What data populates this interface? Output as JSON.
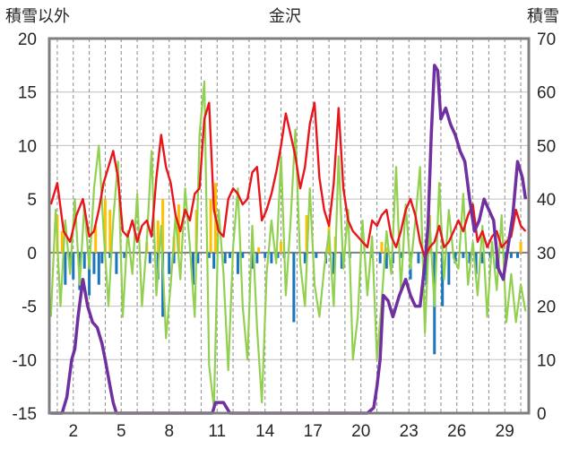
{
  "chart_data": {
    "type": "line",
    "title": "金沢",
    "ylabel_left": "積雪以外",
    "ylabel_right": "積雪",
    "left_axis": {
      "ylim": [
        -15,
        20
      ],
      "ticks": [
        "20",
        "15",
        "10",
        "5",
        "0",
        "-5",
        "-10",
        "-15"
      ]
    },
    "right_axis": {
      "ylim": [
        0,
        70
      ],
      "ticks": [
        "70",
        "60",
        "50",
        "40",
        "30",
        "20",
        "10",
        "0"
      ]
    },
    "x_axis": {
      "xlim": [
        0.5,
        30.5
      ],
      "tick_labels": [
        "2",
        "5",
        "8",
        "11",
        "14",
        "17",
        "20",
        "23",
        "26",
        "29"
      ],
      "tick_values": [
        2,
        5,
        8,
        11,
        14,
        17,
        20,
        23,
        26,
        29
      ]
    },
    "grid": {
      "vertical_dashed": true,
      "horizontal": true
    },
    "colors": {
      "temperature": "#e8161a",
      "wind": "#92d050",
      "sunshine": "#ffc000",
      "precip": "#1b75bc",
      "snow_depth": "#7030a0",
      "frame": "#7f7f7f",
      "grid": "#bfbfbf"
    },
    "series": [
      {
        "key": "temperature",
        "axis": "left",
        "style": "line",
        "x": [
          0.6,
          1.0,
          1.4,
          1.8,
          2.2,
          2.6,
          3.0,
          3.3,
          3.6,
          3.9,
          4.2,
          4.5,
          4.8,
          5.1,
          5.4,
          5.7,
          6.0,
          6.3,
          6.6,
          6.9,
          7.2,
          7.5,
          7.8,
          8.1,
          8.4,
          8.7,
          9.0,
          9.3,
          9.6,
          9.9,
          10.2,
          10.5,
          10.8,
          11.1,
          11.4,
          11.7,
          12.0,
          12.3,
          12.6,
          12.9,
          13.2,
          13.5,
          13.8,
          14.1,
          14.4,
          14.7,
          15.0,
          15.3,
          15.6,
          15.9,
          16.2,
          16.5,
          16.8,
          17.1,
          17.4,
          17.7,
          18.0,
          18.3,
          18.6,
          18.9,
          19.2,
          19.5,
          19.8,
          20.1,
          20.4,
          20.7,
          21.0,
          21.3,
          21.6,
          21.9,
          22.2,
          22.5,
          22.8,
          23.1,
          23.4,
          23.7,
          24.0,
          24.3,
          24.6,
          24.9,
          25.2,
          25.5,
          25.8,
          26.1,
          26.4,
          26.7,
          27.0,
          27.3,
          27.6,
          27.9,
          28.2,
          28.5,
          28.8,
          29.1,
          29.4,
          29.7,
          30.0,
          30.3
        ],
        "values": [
          4.5,
          6.5,
          2.0,
          1.0,
          3.5,
          5.0,
          1.5,
          2.0,
          4.0,
          6.5,
          8.0,
          9.5,
          7.0,
          2.0,
          1.5,
          3.0,
          1.0,
          2.5,
          3.0,
          1.5,
          7.0,
          11.0,
          8.0,
          6.5,
          3.5,
          2.0,
          4.0,
          3.0,
          5.5,
          6.0,
          12.5,
          14.0,
          4.0,
          2.0,
          1.5,
          5.0,
          6.0,
          5.5,
          4.5,
          5.0,
          7.5,
          8.0,
          3.0,
          4.0,
          5.5,
          7.5,
          10.0,
          13.0,
          11.0,
          9.0,
          6.0,
          8.0,
          12.0,
          14.0,
          7.0,
          4.0,
          2.5,
          6.5,
          13.5,
          6.0,
          3.0,
          2.0,
          1.5,
          1.0,
          0.5,
          3.0,
          2.5,
          3.5,
          4.0,
          1.5,
          0.5,
          2.0,
          4.0,
          5.0,
          3.5,
          1.0,
          -0.5,
          0.5,
          1.0,
          2.5,
          0.5,
          1.0,
          2.0,
          3.0,
          2.0,
          3.5,
          4.5,
          1.0,
          2.0,
          0.5,
          1.5,
          2.0,
          0.5,
          1.0,
          1.5,
          4.0,
          2.5,
          2.0
        ]
      },
      {
        "key": "wind",
        "axis": "left",
        "style": "line",
        "x": [
          0.6,
          0.9,
          1.2,
          1.5,
          1.8,
          2.1,
          2.4,
          2.7,
          3.0,
          3.3,
          3.6,
          3.9,
          4.2,
          4.5,
          4.8,
          5.1,
          5.4,
          5.7,
          6.0,
          6.3,
          6.6,
          6.9,
          7.2,
          7.5,
          7.8,
          8.1,
          8.4,
          8.7,
          9.0,
          9.3,
          9.6,
          9.9,
          10.2,
          10.5,
          10.8,
          11.1,
          11.4,
          11.7,
          12.0,
          12.3,
          12.6,
          12.9,
          13.2,
          13.5,
          13.8,
          14.1,
          14.4,
          14.7,
          15.0,
          15.3,
          15.6,
          15.9,
          16.2,
          16.5,
          16.8,
          17.1,
          17.4,
          17.7,
          18.0,
          18.3,
          18.6,
          18.9,
          19.2,
          19.5,
          19.8,
          20.1,
          20.4,
          20.7,
          21.0,
          21.3,
          21.6,
          21.9,
          22.2,
          22.5,
          22.8,
          23.1,
          23.4,
          23.7,
          24.0,
          24.3,
          24.6,
          24.9,
          25.2,
          25.5,
          25.8,
          26.1,
          26.4,
          26.7,
          27.0,
          27.3,
          27.6,
          27.9,
          28.2,
          28.5,
          28.8,
          29.1,
          29.4,
          29.7,
          30.0,
          30.3
        ],
        "values": [
          -6.0,
          4.0,
          -5.0,
          3.0,
          -2.0,
          5.0,
          -3.0,
          4.5,
          -1.5,
          6.0,
          10.0,
          2.0,
          -5.0,
          3.0,
          8.5,
          -6.0,
          2.0,
          -2.0,
          5.5,
          -5.0,
          1.0,
          9.5,
          -4.0,
          2.5,
          -8.0,
          -3.0,
          3.5,
          -2.5,
          6.0,
          0.5,
          -6.0,
          11.0,
          16.0,
          -10.5,
          -14.5,
          4.0,
          -2.0,
          -11.0,
          0.5,
          6.0,
          -5.0,
          -10.0,
          2.5,
          -7.0,
          -14.0,
          -2.0,
          3.0,
          -1.0,
          9.0,
          -4.0,
          3.0,
          11.5,
          -1.0,
          -5.0,
          6.0,
          -3.0,
          -6.0,
          -1.5,
          2.0,
          -5.0,
          9.0,
          -1.5,
          4.0,
          -10.0,
          -6.0,
          3.0,
          -4.0,
          1.5,
          -10.0,
          -4.5,
          2.0,
          -2.0,
          8.0,
          -3.5,
          4.5,
          -1.5,
          3.0,
          8.0,
          -7.5,
          3.0,
          -5.0,
          6.5,
          -2.5,
          4.0,
          -0.5,
          -1.5,
          5.5,
          -3.0,
          1.0,
          -4.0,
          2.5,
          -6.0,
          1.0,
          -3.5,
          3.5,
          -6.5,
          -2.0,
          -6.5,
          -3.0,
          -5.5
        ]
      },
      {
        "key": "sunshine",
        "axis": "left",
        "style": "bar",
        "x": [
          1.0,
          1.3,
          3.4,
          4.0,
          4.3,
          6.6,
          7.3,
          7.6,
          8.3,
          8.6,
          9.7,
          10.6,
          10.9,
          13.6,
          15.0,
          16.6,
          18.0,
          18.4,
          21.3,
          21.6,
          24.3,
          29.2,
          30.0
        ],
        "values": [
          3.5,
          2.0,
          2.5,
          5.0,
          4.0,
          1.0,
          3.0,
          5.0,
          1.5,
          4.5,
          4.0,
          5.0,
          6.5,
          0.5,
          1.0,
          3.5,
          2.5,
          1.5,
          1.0,
          0.5,
          3.5,
          1.5,
          1.0
        ]
      },
      {
        "key": "precip",
        "axis": "left",
        "style": "bar",
        "x": [
          1.5,
          1.8,
          2.0,
          2.4,
          2.7,
          3.0,
          3.3,
          3.6,
          3.8,
          4.3,
          4.7,
          5.2,
          6.8,
          7.3,
          7.6,
          8.0,
          8.3,
          9.5,
          9.8,
          10.5,
          10.8,
          11.5,
          11.8,
          12.3,
          12.6,
          13.2,
          13.5,
          14.0,
          14.4,
          14.8,
          15.2,
          15.8,
          16.5,
          17.2,
          17.8,
          18.3,
          18.8,
          19.3,
          20.7,
          21.2,
          21.6,
          22.0,
          22.5,
          23.1,
          23.6,
          24.1,
          24.6,
          25.1,
          25.5,
          25.9,
          26.4,
          26.8,
          27.2,
          27.6,
          28.1,
          28.5,
          29.0,
          29.4,
          29.8
        ],
        "values": [
          -3.0,
          -1.0,
          -2.5,
          -3.5,
          -1.5,
          -4.0,
          -2.0,
          -3.0,
          -1.0,
          -0.5,
          -2.0,
          -0.5,
          -1.0,
          -2.5,
          -6.0,
          -2.0,
          -1.0,
          -3.0,
          -1.0,
          -0.5,
          -1.5,
          -1.0,
          -0.5,
          -2.0,
          -0.5,
          -1.5,
          -1.0,
          -0.5,
          -1.0,
          -0.5,
          -0.5,
          -6.5,
          -1.0,
          -0.5,
          -1.0,
          -2.0,
          -1.5,
          -0.5,
          -0.5,
          -1.0,
          -1.5,
          -1.0,
          -0.5,
          -2.5,
          -1.0,
          -3.0,
          -9.5,
          -5.0,
          -3.0,
          -1.0,
          -0.5,
          -1.0,
          -2.0,
          -1.0,
          -0.5,
          -1.5,
          -1.0,
          -0.5,
          -0.5
        ]
      },
      {
        "key": "snow_depth",
        "axis": "right",
        "style": "line",
        "x": [
          0.6,
          1.0,
          1.3,
          1.6,
          1.9,
          2.1,
          2.3,
          2.6,
          2.9,
          3.2,
          3.5,
          3.8,
          4.0,
          4.3,
          4.5,
          4.7,
          4.9,
          5.2,
          10.7,
          10.9,
          11.4,
          11.8,
          12.0,
          20.4,
          20.8,
          21.0,
          21.2,
          21.4,
          21.7,
          22.0,
          22.4,
          22.8,
          23.1,
          23.4,
          23.7,
          24.0,
          24.2,
          24.4,
          24.6,
          24.8,
          25.0,
          25.3,
          25.6,
          25.9,
          26.2,
          26.5,
          26.8,
          27.1,
          27.4,
          27.7,
          28.0,
          28.3,
          28.6,
          28.9,
          29.2,
          29.5,
          29.8,
          30.1,
          30.3
        ],
        "values": [
          0,
          0,
          0,
          3,
          10,
          12,
          18,
          25,
          20,
          17,
          16,
          13,
          10,
          5,
          2,
          0,
          0,
          0,
          0,
          2,
          2,
          0,
          0,
          0,
          1,
          5,
          10,
          22,
          21,
          18,
          22,
          25,
          22,
          20,
          20,
          28,
          35,
          52,
          65,
          64,
          55,
          57,
          54,
          52,
          49,
          47,
          40,
          34,
          36,
          40,
          38,
          36,
          27,
          25,
          31,
          37,
          47,
          44,
          40
        ]
      }
    ]
  }
}
